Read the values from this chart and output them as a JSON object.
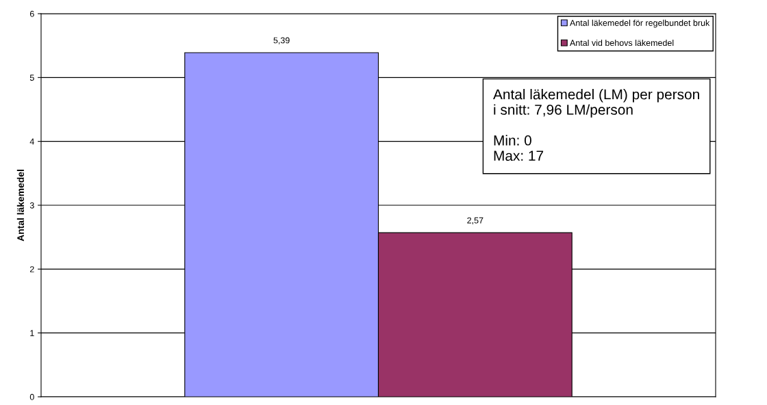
{
  "chart_data": {
    "type": "bar",
    "ylabel": "Antal läkemedel",
    "categories": [
      null
    ],
    "series": [
      {
        "name": "Antal läkemedel för regelbundet bruk",
        "color": "#9999ff",
        "values": [
          5.39
        ],
        "value_labels": [
          "5,39"
        ]
      },
      {
        "name": "Antal vid behovs läkemedel",
        "color": "#993366",
        "values": [
          2.57
        ],
        "value_labels": [
          "2,57"
        ]
      }
    ],
    "ylim": [
      0,
      6
    ],
    "yticks": [
      0,
      1,
      2,
      3,
      4,
      5,
      6
    ],
    "grid": "y",
    "legend": "top right",
    "tick_labels": "y",
    "annotations": [
      "Antal läkemedel (LM) per person\ni snitt: 7,96 LM/person\n\nMin: 0\nMax: 17"
    ]
  }
}
